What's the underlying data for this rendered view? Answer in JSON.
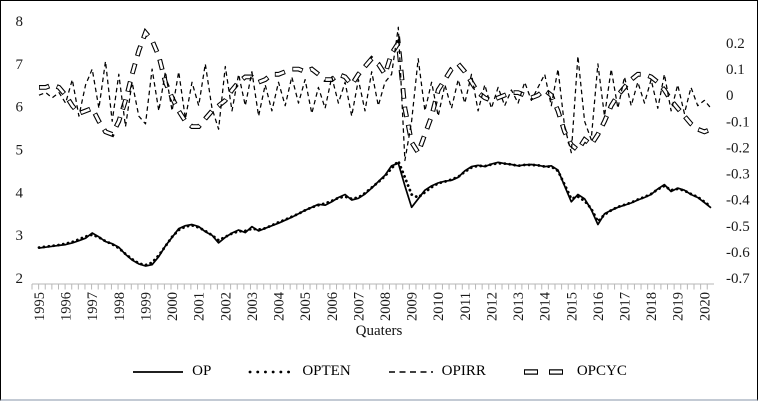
{
  "figure": {
    "kind": "decomposition line chart",
    "background": "#ffffff"
  },
  "colors": {
    "series": "#000000",
    "axis_line": "#b7b7b7",
    "tick": "#b7b7b7",
    "text": "#1a1a1a",
    "figure_border": "#000000",
    "figure_bottom_border": "#c3cad4"
  },
  "chart_data": {
    "type": "line",
    "title": "",
    "xlabel": "Quaters",
    "ylabel_left": "",
    "ylabel_right": "",
    "grid": false,
    "legend_position": "bottom",
    "x_frequency": "quarterly",
    "x_start": "1995Q1",
    "x_end": "2020Q2",
    "x_tick_labels": [
      "1995",
      "1996",
      "1997",
      "1998",
      "1999",
      "2000",
      "2001",
      "2002",
      "2003",
      "2004",
      "2005",
      "2006",
      "2007",
      "2008",
      "2009",
      "2010",
      "2011",
      "2012",
      "2013",
      "2014",
      "2015",
      "2016",
      "2017",
      "2018",
      "2019",
      "2020"
    ],
    "left_axis": {
      "min": 2,
      "max": 8,
      "tick_labels": [
        "8",
        "7",
        "6",
        "5",
        "4",
        "3",
        "2"
      ],
      "tick_values": [
        8,
        7,
        6,
        5,
        4,
        3,
        2
      ]
    },
    "right_axis": {
      "min": -0.7,
      "max": 0.2,
      "tick_labels": [
        "0.2",
        "0.1",
        "0",
        "-0.1",
        "-0.2",
        "-0.3",
        "-0.4",
        "-0.5",
        "-0.6",
        "-0.7"
      ],
      "tick_values": [
        0.2,
        0.1,
        0,
        -0.1,
        -0.2,
        -0.3,
        -0.4,
        -0.5,
        -0.6,
        -0.7
      ]
    },
    "series": [
      {
        "name": "OP",
        "style": "solid",
        "axis": "left",
        "values": [
          2.7,
          2.72,
          2.74,
          2.76,
          2.78,
          2.82,
          2.87,
          2.93,
          3.05,
          2.96,
          2.85,
          2.8,
          2.72,
          2.55,
          2.42,
          2.33,
          2.28,
          2.31,
          2.5,
          2.75,
          2.95,
          3.15,
          3.22,
          3.25,
          3.2,
          3.08,
          3.0,
          2.82,
          2.95,
          3.05,
          3.12,
          3.06,
          3.2,
          3.1,
          3.16,
          3.22,
          3.28,
          3.35,
          3.42,
          3.5,
          3.58,
          3.65,
          3.72,
          3.7,
          3.78,
          3.88,
          3.95,
          3.82,
          3.86,
          3.96,
          4.1,
          4.25,
          4.4,
          4.62,
          4.68,
          4.15,
          3.65,
          3.85,
          4.05,
          4.15,
          4.22,
          4.26,
          4.28,
          4.35,
          4.5,
          4.6,
          4.63,
          4.6,
          4.66,
          4.7,
          4.67,
          4.65,
          4.62,
          4.64,
          4.65,
          4.63,
          4.6,
          4.62,
          4.52,
          4.15,
          3.78,
          3.95,
          3.85,
          3.6,
          3.25,
          3.5,
          3.58,
          3.65,
          3.7,
          3.75,
          3.82,
          3.88,
          3.95,
          4.08,
          4.18,
          4.02,
          4.1,
          4.05,
          3.95,
          3.88,
          3.76,
          3.64
        ]
      },
      {
        "name": "OPTEN",
        "style": "dotted",
        "axis": "left",
        "values": [
          2.71,
          2.73,
          2.75,
          2.77,
          2.8,
          2.84,
          2.9,
          2.97,
          3.01,
          2.95,
          2.86,
          2.79,
          2.7,
          2.56,
          2.44,
          2.34,
          2.3,
          2.36,
          2.53,
          2.74,
          2.96,
          3.12,
          3.2,
          3.23,
          3.18,
          3.1,
          3.0,
          2.88,
          2.96,
          3.04,
          3.09,
          3.1,
          3.15,
          3.13,
          3.16,
          3.23,
          3.3,
          3.36,
          3.43,
          3.5,
          3.58,
          3.65,
          3.7,
          3.74,
          3.8,
          3.87,
          3.9,
          3.85,
          3.88,
          3.98,
          4.11,
          4.24,
          4.38,
          4.56,
          4.73,
          4.35,
          3.95,
          3.88,
          4.0,
          4.12,
          4.21,
          4.25,
          4.3,
          4.36,
          4.48,
          4.58,
          4.62,
          4.61,
          4.65,
          4.68,
          4.67,
          4.65,
          4.62,
          4.64,
          4.64,
          4.63,
          4.6,
          4.6,
          4.5,
          4.18,
          3.85,
          3.9,
          3.8,
          3.62,
          3.32,
          3.48,
          3.58,
          3.66,
          3.71,
          3.76,
          3.83,
          3.89,
          3.96,
          4.07,
          4.15,
          4.05,
          4.08,
          4.04,
          3.96,
          3.89,
          3.78,
          3.66
        ]
      },
      {
        "name": "OPIRR",
        "style": "dashed",
        "axis": "right",
        "values": [
          0.0,
          0.01,
          -0.01,
          0.01,
          -0.03,
          0.06,
          -0.08,
          0.04,
          0.1,
          -0.05,
          0.13,
          -0.1,
          0.08,
          -0.12,
          0.05,
          -0.08,
          -0.11,
          0.1,
          -0.06,
          0.09,
          -0.06,
          0.09,
          -0.09,
          0.05,
          -0.04,
          0.12,
          -0.05,
          -0.13,
          0.11,
          -0.06,
          0.08,
          -0.04,
          0.09,
          -0.08,
          0.04,
          -0.06,
          0.05,
          -0.04,
          0.07,
          -0.03,
          0.06,
          -0.07,
          0.03,
          -0.05,
          0.07,
          -0.03,
          0.05,
          -0.08,
          0.06,
          -0.06,
          0.09,
          -0.04,
          0.05,
          0.08,
          0.26,
          -0.25,
          -0.1,
          0.14,
          -0.06,
          0.05,
          -0.08,
          0.04,
          -0.05,
          0.06,
          -0.03,
          0.08,
          -0.06,
          0.04,
          -0.05,
          0.03,
          -0.04,
          0.02,
          -0.03,
          0.05,
          -0.02,
          0.03,
          0.08,
          -0.04,
          0.1,
          -0.12,
          -0.22,
          0.15,
          -0.1,
          -0.17,
          0.12,
          -0.08,
          0.1,
          -0.05,
          0.07,
          -0.04,
          0.05,
          -0.03,
          0.06,
          -0.05,
          0.08,
          -0.06,
          0.04,
          -0.07,
          0.03,
          -0.04,
          -0.02,
          -0.05
        ]
      },
      {
        "name": "OPCYC",
        "style": "thick-long-dash",
        "axis": "right",
        "values": [
          0.03,
          0.03,
          0.04,
          0.03,
          0.0,
          -0.04,
          -0.07,
          -0.06,
          -0.05,
          -0.1,
          -0.14,
          -0.15,
          -0.1,
          -0.02,
          0.08,
          0.17,
          0.24,
          0.21,
          0.15,
          0.05,
          -0.01,
          -0.06,
          -0.1,
          -0.12,
          -0.12,
          -0.09,
          -0.06,
          -0.04,
          -0.02,
          0.02,
          0.05,
          0.07,
          0.07,
          0.05,
          0.06,
          0.08,
          0.08,
          0.09,
          0.1,
          0.1,
          0.09,
          0.1,
          0.08,
          0.06,
          0.06,
          0.08,
          0.07,
          0.04,
          0.08,
          0.11,
          0.14,
          0.12,
          0.08,
          0.16,
          0.2,
          -0.05,
          -0.18,
          -0.22,
          -0.15,
          -0.08,
          0.02,
          0.06,
          0.1,
          0.12,
          0.09,
          0.05,
          0.01,
          -0.01,
          -0.02,
          -0.01,
          0.0,
          0.01,
          0.01,
          0.0,
          -0.01,
          0.0,
          0.02,
          0.0,
          -0.06,
          -0.14,
          -0.19,
          -0.21,
          -0.17,
          -0.19,
          -0.15,
          -0.1,
          -0.04,
          0.0,
          0.03,
          0.06,
          0.08,
          0.08,
          0.07,
          0.05,
          0.02,
          -0.02,
          -0.05,
          -0.08,
          -0.11,
          -0.13,
          -0.14,
          -0.13
        ]
      }
    ]
  }
}
